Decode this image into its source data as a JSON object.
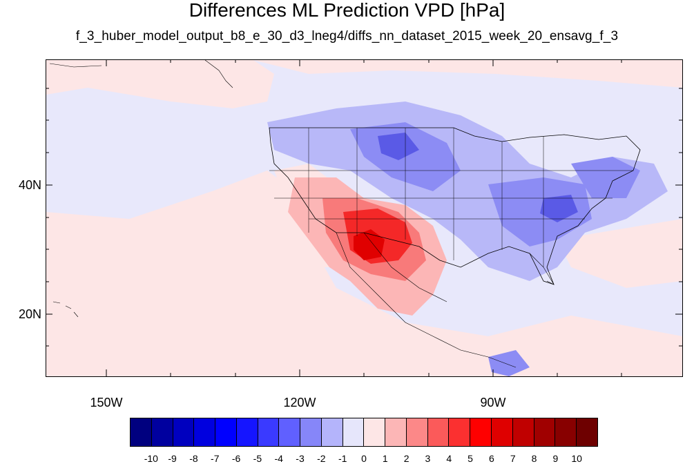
{
  "figure": {
    "title": "Differences ML Prediction VPD [hPa]",
    "subtitle": "f_3_huber_model_output_b8_e_30_d3_lneg4/diffs_nn_dataset_2015_week_20_ensavg_f_3"
  },
  "axes": {
    "lat_labels": [
      "40N",
      "20N"
    ],
    "lon_labels": [
      "150W",
      "120W",
      "90W"
    ]
  },
  "colorbar": {
    "labels": [
      "-10",
      "-9",
      "-8",
      "-7",
      "-6",
      "-5",
      "-4",
      "-3",
      "-2",
      "-1",
      "0",
      "1",
      "2",
      "3",
      "4",
      "5",
      "6",
      "7",
      "8",
      "9",
      "10"
    ],
    "colors": [
      "#00007f",
      "#00009f",
      "#0000bf",
      "#0000df",
      "#0000ff",
      "#1515ff",
      "#3a3aff",
      "#6060ff",
      "#8686f9",
      "#b4b4fb",
      "#e6e6fb",
      "#fde6e6",
      "#fcb6b6",
      "#fc8888",
      "#fb5a5a",
      "#fb3030",
      "#ff0000",
      "#df0000",
      "#c00000",
      "#a00000",
      "#880000",
      "#6e0000"
    ]
  },
  "palette": {
    "ocean_base": "#e8e8fb",
    "pink_light": "#fde6e6",
    "blue_light": "#b8b8f8",
    "blue_mid": "#8c8cf4",
    "blue_strong": "#5a5ae6",
    "red_light": "#fcb6b6",
    "red_mid": "#f87a7a",
    "red_strong": "#f42828",
    "red_core": "#e00000"
  }
}
